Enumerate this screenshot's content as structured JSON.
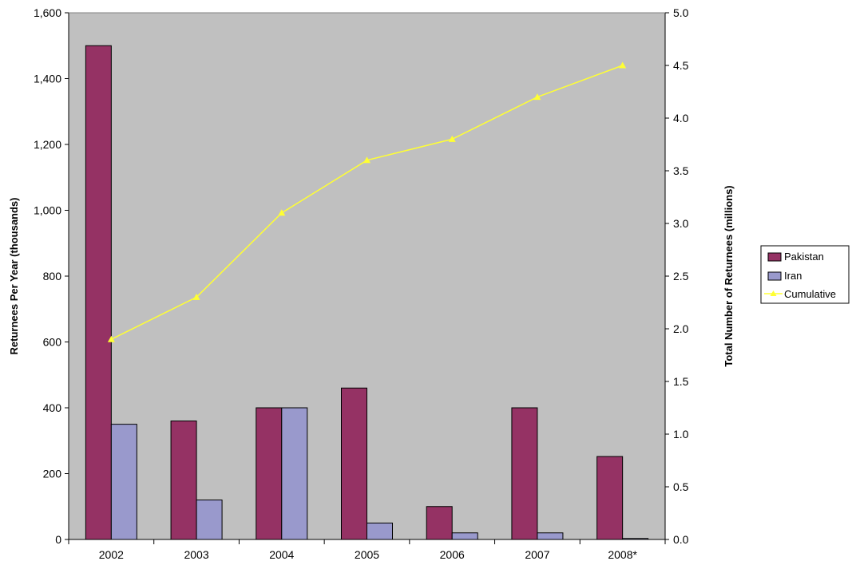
{
  "chart_data": {
    "type": "bar",
    "categories": [
      "2002",
      "2003",
      "2004",
      "2005",
      "2006",
      "2007",
      "2008*"
    ],
    "series": [
      {
        "name": "Pakistan",
        "kind": "bar",
        "axis": "left",
        "color": "#953264",
        "values": [
          1500,
          360,
          400,
          460,
          100,
          400,
          252
        ]
      },
      {
        "name": "Iran",
        "kind": "bar",
        "axis": "left",
        "color": "#9999CC",
        "values": [
          350,
          120,
          400,
          50,
          20,
          20,
          3
        ]
      },
      {
        "name": "Cumulative",
        "kind": "line",
        "axis": "right",
        "color": "#FFFF33",
        "marker": "triangle",
        "values": [
          1.9,
          2.3,
          3.1,
          3.6,
          3.8,
          4.2,
          4.5
        ]
      }
    ],
    "ylabel": "Returnees Per Year (thousands)",
    "y2label": "Total Number of Returnees (millions)",
    "ylim": [
      0,
      1600
    ],
    "y2lim": [
      0,
      5.0
    ],
    "yticks": [
      "0",
      "200",
      "400",
      "600",
      "800",
      "1,000",
      "1,200",
      "1,400",
      "1,600"
    ],
    "y2ticks": [
      "0.0",
      "0.5",
      "1.0",
      "1.5",
      "2.0",
      "2.5",
      "3.0",
      "3.5",
      "4.0",
      "4.5",
      "5.0"
    ],
    "plot_background": "#C0C0C0",
    "grid": false,
    "legend_position": "right"
  }
}
